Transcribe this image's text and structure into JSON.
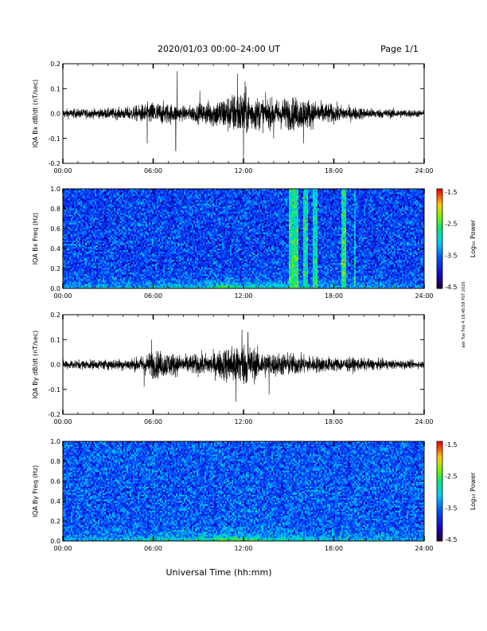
{
  "header": {
    "title": "2020/01/03  00:00–24:00 UT",
    "page": "Page 1/1"
  },
  "side_note": "ask Tue Feb 4 18:40:58 PST 2020",
  "xlabel": "Universal Time (hh:mm)",
  "chart_data": [
    {
      "type": "line",
      "title": "",
      "ylabel": "IQA Bx dB/dt (nT/sec)",
      "xlabel": "",
      "xlim": [
        0,
        24
      ],
      "ylim": [
        -0.2,
        0.2
      ],
      "x_ticks": [
        "00:00",
        "06:00",
        "12:00",
        "18:00",
        "24:00"
      ],
      "y_ticks": [
        "0.2",
        "0.1",
        "0.0",
        "-0.1",
        "-0.2"
      ],
      "grid": false,
      "envelope": {
        "hours": [
          0,
          2,
          4,
          5,
          6,
          7,
          8,
          9,
          10,
          11,
          11.5,
          12,
          12.5,
          13,
          14,
          15,
          16,
          17,
          18,
          19,
          20,
          21,
          22,
          24
        ],
        "amplitude": [
          0.02,
          0.02,
          0.025,
          0.035,
          0.05,
          0.045,
          0.03,
          0.04,
          0.06,
          0.08,
          0.09,
          0.1,
          0.08,
          0.07,
          0.06,
          0.07,
          0.07,
          0.05,
          0.04,
          0.03,
          0.025,
          0.02,
          0.02,
          0.015
        ]
      },
      "spikes": [
        {
          "hour": 5.6,
          "value": -0.12
        },
        {
          "hour": 7.5,
          "value": -0.15
        },
        {
          "hour": 7.6,
          "value": 0.17
        },
        {
          "hour": 9.1,
          "value": 0.09
        },
        {
          "hour": 11.6,
          "value": 0.16
        },
        {
          "hour": 12.0,
          "value": -0.2
        },
        {
          "hour": 12.1,
          "value": 0.13
        },
        {
          "hour": 14.0,
          "value": -0.1
        },
        {
          "hour": 16.0,
          "value": -0.12
        }
      ]
    },
    {
      "type": "heatmap",
      "title": "",
      "ylabel": "IQA Bx Freq (Hz)",
      "xlabel": "",
      "xlim": [
        0,
        24
      ],
      "ylim": [
        0,
        1.0
      ],
      "x_ticks": [
        "00:00",
        "06:00",
        "12:00",
        "18:00",
        "24:00"
      ],
      "y_ticks": [
        "0.0",
        "0.2",
        "0.4",
        "0.6",
        "0.8",
        "1.0"
      ],
      "colorbar": {
        "label": "Log₁₀ Power",
        "ticks": [
          "-1.5",
          "-2.5",
          "-3.5",
          "-4.5"
        ],
        "range": [
          -4.5,
          -1.5
        ]
      },
      "background_log_power": -3.7,
      "low_freq_enhancement": {
        "hours": [
          0,
          6,
          7,
          9,
          10,
          11,
          12,
          14,
          16,
          18,
          20,
          24
        ],
        "log_power": [
          -3.0,
          -3.0,
          -2.7,
          -3.0,
          -2.5,
          -2.2,
          -2.5,
          -2.8,
          -2.9,
          -3.0,
          -3.1,
          -3.2
        ]
      },
      "broadband_bursts": [
        {
          "start_hour": 15.0,
          "end_hour": 15.6,
          "log_power": -2.6
        },
        {
          "start_hour": 16.0,
          "end_hour": 16.3,
          "log_power": -2.7
        },
        {
          "start_hour": 16.6,
          "end_hour": 16.9,
          "log_power": -2.8
        },
        {
          "start_hour": 18.5,
          "end_hour": 18.8,
          "log_power": -2.6
        },
        {
          "start_hour": 19.3,
          "end_hour": 19.45,
          "log_power": -3.0
        }
      ]
    },
    {
      "type": "line",
      "title": "",
      "ylabel": "IQA By dB/dt (nT/sec)",
      "xlabel": "",
      "xlim": [
        0,
        24
      ],
      "ylim": [
        -0.2,
        0.2
      ],
      "x_ticks": [
        "00:00",
        "06:00",
        "12:00",
        "18:00",
        "24:00"
      ],
      "y_ticks": [
        "0.2",
        "0.1",
        "0.0",
        "-0.1",
        "-0.2"
      ],
      "grid": false,
      "envelope": {
        "hours": [
          0,
          2,
          4,
          5,
          5.5,
          6,
          7,
          8,
          9,
          10,
          11,
          11.5,
          12,
          12.5,
          13,
          14,
          15,
          16,
          17,
          18,
          19,
          20,
          22,
          24
        ],
        "amplitude": [
          0.02,
          0.02,
          0.025,
          0.03,
          0.045,
          0.06,
          0.055,
          0.04,
          0.045,
          0.05,
          0.08,
          0.1,
          0.09,
          0.08,
          0.06,
          0.05,
          0.05,
          0.04,
          0.035,
          0.03,
          0.03,
          0.025,
          0.02,
          0.015
        ]
      },
      "spikes": [
        {
          "hour": 5.4,
          "value": -0.09
        },
        {
          "hour": 5.9,
          "value": 0.1
        },
        {
          "hour": 11.5,
          "value": -0.15
        },
        {
          "hour": 12.3,
          "value": 0.13
        },
        {
          "hour": 13.7,
          "value": -0.12
        },
        {
          "hour": 11.9,
          "value": 0.14
        }
      ]
    },
    {
      "type": "heatmap",
      "title": "",
      "ylabel": "IQA By Freq (Hz)",
      "xlabel": "",
      "xlim": [
        0,
        24
      ],
      "ylim": [
        0,
        1.0
      ],
      "x_ticks": [
        "00:00",
        "06:00",
        "12:00",
        "18:00",
        "24:00"
      ],
      "y_ticks": [
        "0.0",
        "0.2",
        "0.4",
        "0.6",
        "0.8",
        "1.0"
      ],
      "colorbar": {
        "label": "Log₁₀ Power",
        "ticks": [
          "-1.5",
          "-2.5",
          "-3.5",
          "-4.5"
        ],
        "range": [
          -4.5,
          -1.5
        ]
      },
      "background_log_power": -3.6,
      "low_freq_enhancement": {
        "hours": [
          0,
          4,
          5,
          6,
          8,
          10,
          11,
          11.5,
          12,
          13,
          14,
          16,
          18,
          20,
          22,
          24
        ],
        "log_power": [
          -3.1,
          -3.1,
          -2.9,
          -2.8,
          -2.9,
          -2.5,
          -2.2,
          -2.1,
          -2.3,
          -2.5,
          -2.7,
          -2.8,
          -3.0,
          -3.0,
          -3.1,
          -3.2
        ]
      },
      "broadband_bursts": []
    }
  ],
  "colors": {
    "line": "#000000",
    "background": "#ffffff"
  }
}
